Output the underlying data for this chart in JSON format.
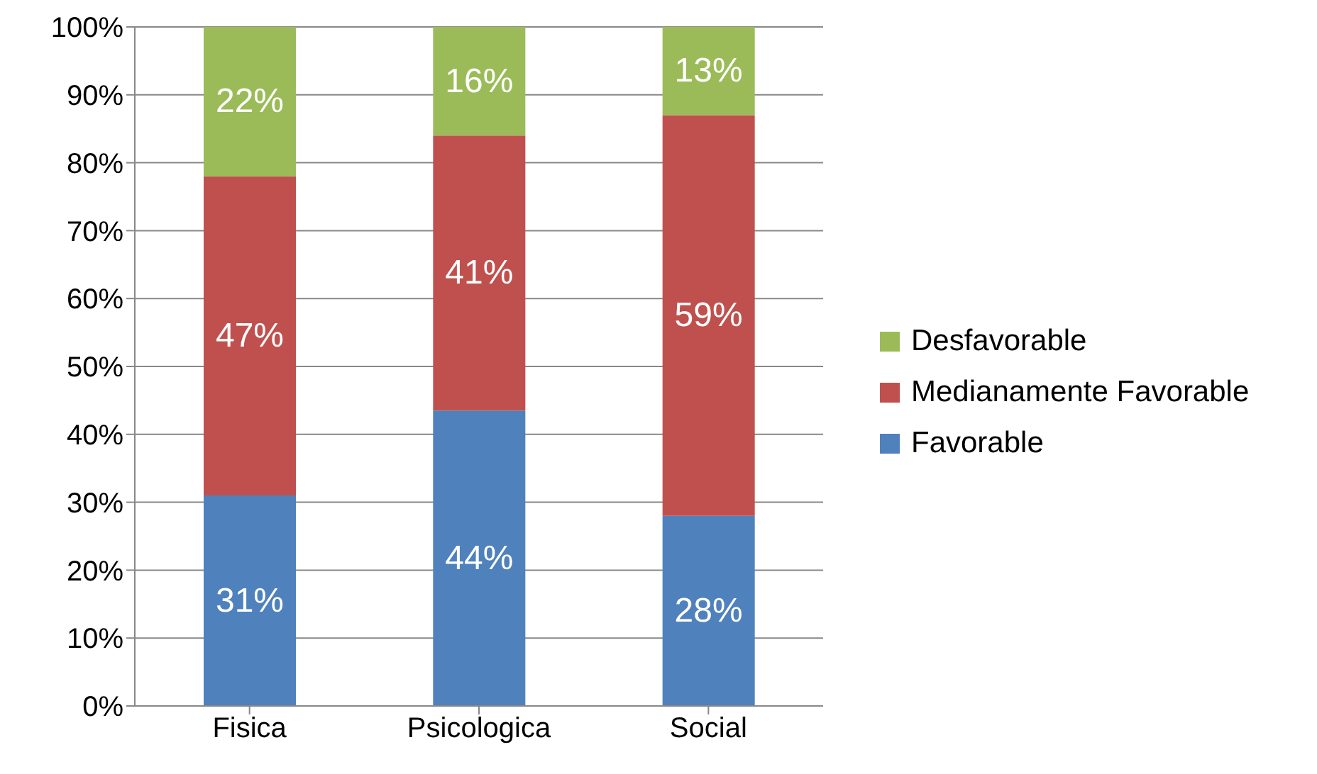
{
  "chart_data": {
    "type": "bar",
    "stacked": true,
    "categories": [
      "Fisica",
      "Psicologica",
      "Social"
    ],
    "series": [
      {
        "name": "Favorable",
        "color": "#4f81bd",
        "values": [
          31,
          43.5,
          28
        ],
        "value_labels": [
          "31%",
          "44%",
          "28%"
        ]
      },
      {
        "name": "Medianamente Favorable",
        "color": "#c0504d",
        "values": [
          47,
          40.5,
          59
        ],
        "value_labels": [
          "47%",
          "41%",
          "59%"
        ]
      },
      {
        "name": "Desfavorable",
        "color": "#9bbb59",
        "values": [
          22,
          16,
          13
        ],
        "value_labels": [
          "22%",
          "16%",
          "13%"
        ]
      }
    ],
    "ylim": [
      0,
      100
    ],
    "yticks": [
      {
        "value": 0,
        "label": "0%"
      },
      {
        "value": 10,
        "label": "10%"
      },
      {
        "value": 20,
        "label": "20%"
      },
      {
        "value": 30,
        "label": "30%"
      },
      {
        "value": 40,
        "label": "40%"
      },
      {
        "value": 50,
        "label": "50%"
      },
      {
        "value": 60,
        "label": "60%"
      },
      {
        "value": 70,
        "label": "70%"
      },
      {
        "value": 80,
        "label": "80%"
      },
      {
        "value": 90,
        "label": "90%"
      },
      {
        "value": 100,
        "label": "100%"
      }
    ],
    "grid": "y",
    "legend": "right"
  }
}
